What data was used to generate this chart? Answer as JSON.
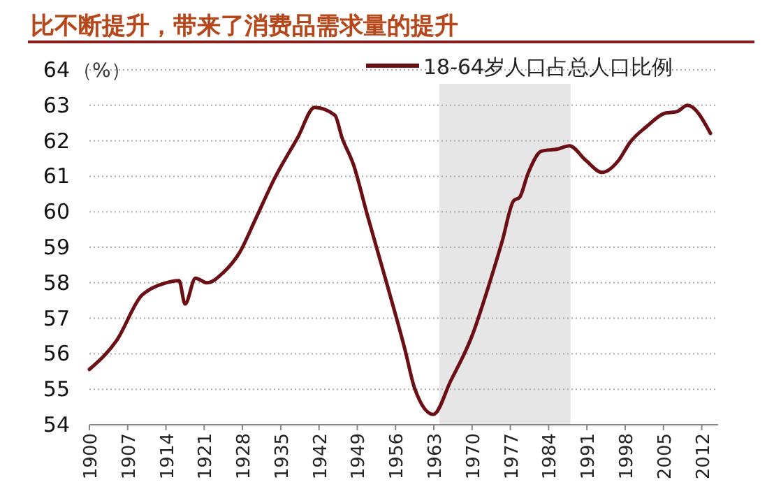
{
  "chart_data": {
    "type": "line",
    "title": "比不断提升，带来了消费品需求量的提升",
    "ylabel": "（%）",
    "series": [
      {
        "name": "18-64岁人口占总人口比例",
        "color": "#6b0f14",
        "x": [
          1900,
          1905,
          1909.6,
          1910.9,
          1913.4,
          1916.4,
          1917.5,
          1919.4,
          1921.5,
          1924.5,
          1927.5,
          1930.4,
          1933.9,
          1938.1,
          1941.2,
          1944.9,
          1946.2,
          1948.3,
          1950.8,
          1954.3,
          1957.7,
          1959.5,
          1962.9,
          1966.1,
          1970,
          1973,
          1975.5,
          1977.6,
          1978.7,
          1980.2,
          1982.7,
          1985.7,
          1987.8,
          1990.8,
          1993.8,
          1996.8,
          1998.9,
          2001.9,
          2005.3,
          2007.4,
          2009.4,
          2013.6
        ],
        "values": [
          55.56,
          56.38,
          57.65,
          57.8,
          57.97,
          58.06,
          57.4,
          58.13,
          58.0,
          58.29,
          58.86,
          59.8,
          60.95,
          62.09,
          62.94,
          62.72,
          62.09,
          61.33,
          59.93,
          58.03,
          56.13,
          55.02,
          54.29,
          55.24,
          56.51,
          57.9,
          59.17,
          60.31,
          60.41,
          61.07,
          61.71,
          61.77,
          61.86,
          61.45,
          61.11,
          61.45,
          61.96,
          62.4,
          62.78,
          62.82,
          63.0,
          62.21
        ]
      }
    ],
    "xlim": [
      1900,
      2015
    ],
    "xticks": [
      1900,
      1907,
      1914,
      1921,
      1928,
      1935,
      1942,
      1949,
      1956,
      1963,
      1970,
      1977,
      1984,
      1991,
      1998,
      2005,
      2012
    ],
    "ylim": [
      54,
      64
    ],
    "yticks": [
      54,
      55,
      56,
      57,
      58,
      59,
      60,
      61,
      62,
      63,
      64
    ],
    "bands": [
      {
        "axis": "x",
        "from": 1964,
        "to": 1988,
        "color": "#e6e6e6"
      }
    ],
    "grid": "y",
    "legend": "top right",
    "marker": "none",
    "line_style": "solid"
  }
}
